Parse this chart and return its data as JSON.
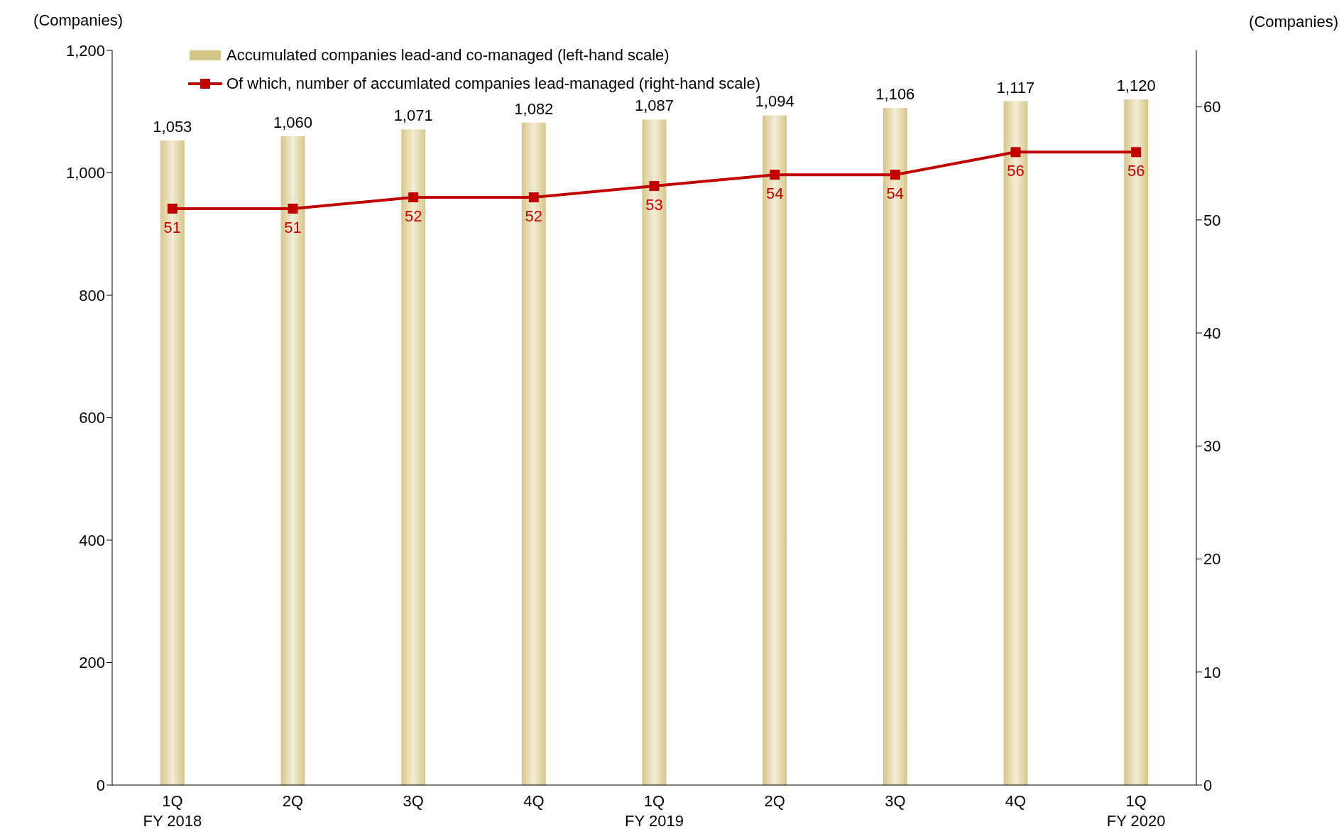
{
  "chart_data": {
    "type": "bar",
    "ylabel": "(Companies)",
    "y2label": "(Companies)",
    "categories": [
      "1Q\nFY 2018",
      "2Q",
      "3Q",
      "4Q",
      "1Q\nFY 2019",
      "2Q",
      "3Q",
      "4Q",
      "1Q\nFY 2020"
    ],
    "series": [
      {
        "name": "Accumulated companies lead-and co-managed (left-hand scale)",
        "color": "#d6c68a",
        "values": [
          1053,
          1060,
          1071,
          1082,
          1087,
          1094,
          1106,
          1117,
          1120
        ],
        "value_labels": [
          "1,053",
          "1,060",
          "1,071",
          "1,082",
          "1,087",
          "1,094",
          "1,106",
          "1,117",
          "1,120"
        ]
      },
      {
        "name": "Of which, number of accumlated companies lead-managed (right-hand scale)",
        "type": "line",
        "axis": "y2",
        "color": "#c00000",
        "marker": "square",
        "values": [
          51,
          51,
          52,
          52,
          53,
          54,
          54,
          56,
          56
        ]
      }
    ],
    "ylim": [
      0,
      1200
    ],
    "yticks": [
      0,
      200,
      400,
      600,
      800,
      {
        "value": 1000,
        "label": "1,000"
      },
      {
        "value": 1200,
        "label": "1,200"
      }
    ],
    "y2lim": [
      0,
      65
    ],
    "y2ticks": [
      0,
      10,
      20,
      30,
      40,
      50,
      60
    ],
    "data_labels": true,
    "grid": false,
    "legend": "top left"
  }
}
